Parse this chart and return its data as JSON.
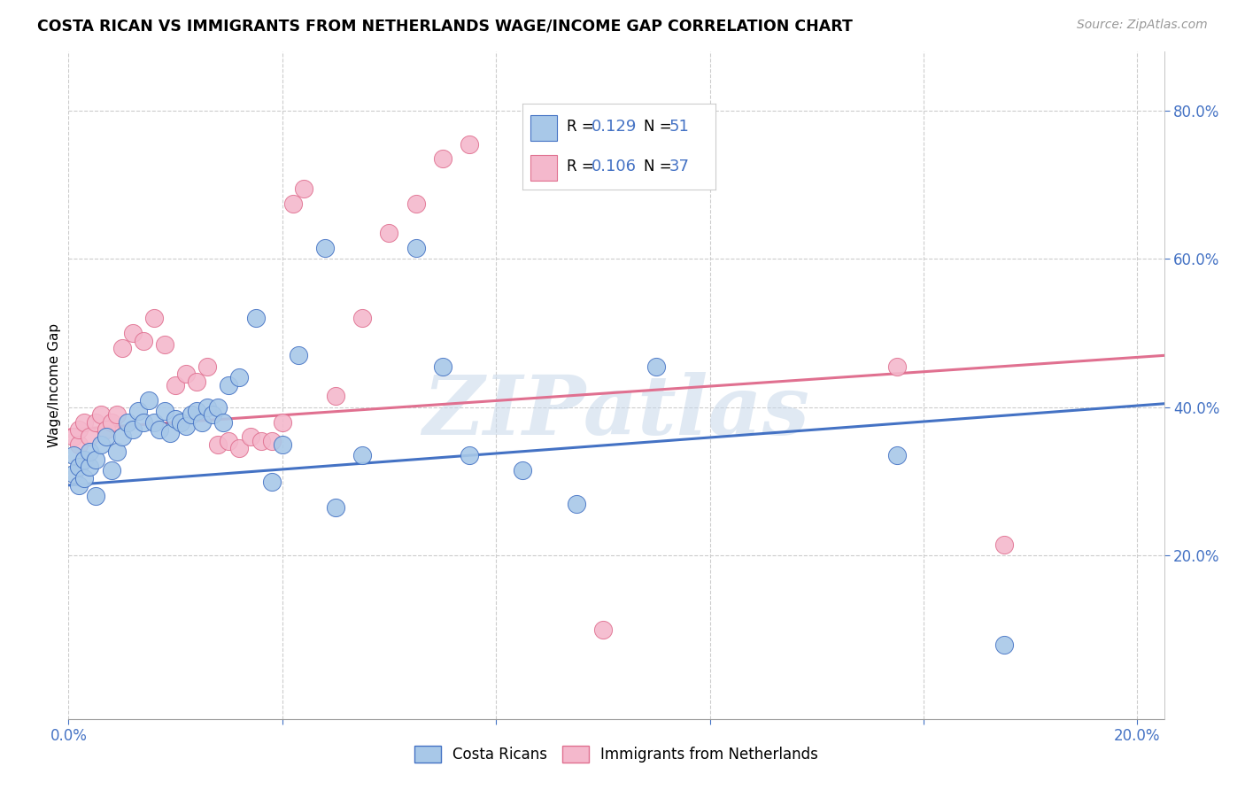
{
  "title": "COSTA RICAN VS IMMIGRANTS FROM NETHERLANDS WAGE/INCOME GAP CORRELATION CHART",
  "source": "Source: ZipAtlas.com",
  "ylabel": "Wage/Income Gap",
  "x_min": 0.0,
  "x_max": 0.205,
  "y_min": -0.02,
  "y_max": 0.88,
  "x_ticks": [
    0.0,
    0.04,
    0.08,
    0.12,
    0.16,
    0.2
  ],
  "y_ticks_right": [
    0.2,
    0.4,
    0.6,
    0.8
  ],
  "y_tick_labels_right": [
    "20.0%",
    "40.0%",
    "60.0%",
    "80.0%"
  ],
  "blue_color": "#a8c8e8",
  "pink_color": "#f4b8cc",
  "blue_line_color": "#4472c4",
  "pink_line_color": "#e07090",
  "legend_color": "#4472c4",
  "watermark": "ZIPatlas",
  "watermark_color": "#c8d8ea",
  "background_color": "#ffffff",
  "grid_color": "#cccccc",
  "blue_R": 0.129,
  "blue_N": 51,
  "pink_R": 0.106,
  "pink_N": 37,
  "blue_trend_y0": 0.295,
  "blue_trend_y1": 0.405,
  "pink_trend_y0": 0.37,
  "pink_trend_y1": 0.47,
  "blue_scatter_x": [
    0.001,
    0.001,
    0.002,
    0.002,
    0.003,
    0.003,
    0.004,
    0.004,
    0.005,
    0.005,
    0.006,
    0.007,
    0.008,
    0.009,
    0.01,
    0.011,
    0.012,
    0.013,
    0.014,
    0.015,
    0.016,
    0.017,
    0.018,
    0.019,
    0.02,
    0.021,
    0.022,
    0.023,
    0.024,
    0.025,
    0.026,
    0.027,
    0.028,
    0.029,
    0.03,
    0.032,
    0.035,
    0.038,
    0.04,
    0.043,
    0.048,
    0.05,
    0.055,
    0.065,
    0.07,
    0.075,
    0.085,
    0.095,
    0.11,
    0.155,
    0.175
  ],
  "blue_scatter_y": [
    0.335,
    0.31,
    0.32,
    0.295,
    0.33,
    0.305,
    0.32,
    0.34,
    0.33,
    0.28,
    0.35,
    0.36,
    0.315,
    0.34,
    0.36,
    0.38,
    0.37,
    0.395,
    0.38,
    0.41,
    0.38,
    0.37,
    0.395,
    0.365,
    0.385,
    0.38,
    0.375,
    0.39,
    0.395,
    0.38,
    0.4,
    0.39,
    0.4,
    0.38,
    0.43,
    0.44,
    0.52,
    0.3,
    0.35,
    0.47,
    0.615,
    0.265,
    0.335,
    0.615,
    0.455,
    0.335,
    0.315,
    0.27,
    0.455,
    0.335,
    0.08
  ],
  "pink_scatter_x": [
    0.001,
    0.002,
    0.002,
    0.003,
    0.004,
    0.005,
    0.006,
    0.007,
    0.008,
    0.009,
    0.01,
    0.012,
    0.014,
    0.016,
    0.018,
    0.02,
    0.022,
    0.024,
    0.026,
    0.028,
    0.03,
    0.032,
    0.034,
    0.036,
    0.038,
    0.04,
    0.042,
    0.044,
    0.05,
    0.055,
    0.06,
    0.065,
    0.07,
    0.075,
    0.1,
    0.155,
    0.175
  ],
  "pink_scatter_y": [
    0.36,
    0.35,
    0.37,
    0.38,
    0.36,
    0.38,
    0.39,
    0.37,
    0.38,
    0.39,
    0.48,
    0.5,
    0.49,
    0.52,
    0.485,
    0.43,
    0.445,
    0.435,
    0.455,
    0.35,
    0.355,
    0.345,
    0.36,
    0.355,
    0.355,
    0.38,
    0.675,
    0.695,
    0.415,
    0.52,
    0.635,
    0.675,
    0.735,
    0.755,
    0.1,
    0.455,
    0.215
  ]
}
